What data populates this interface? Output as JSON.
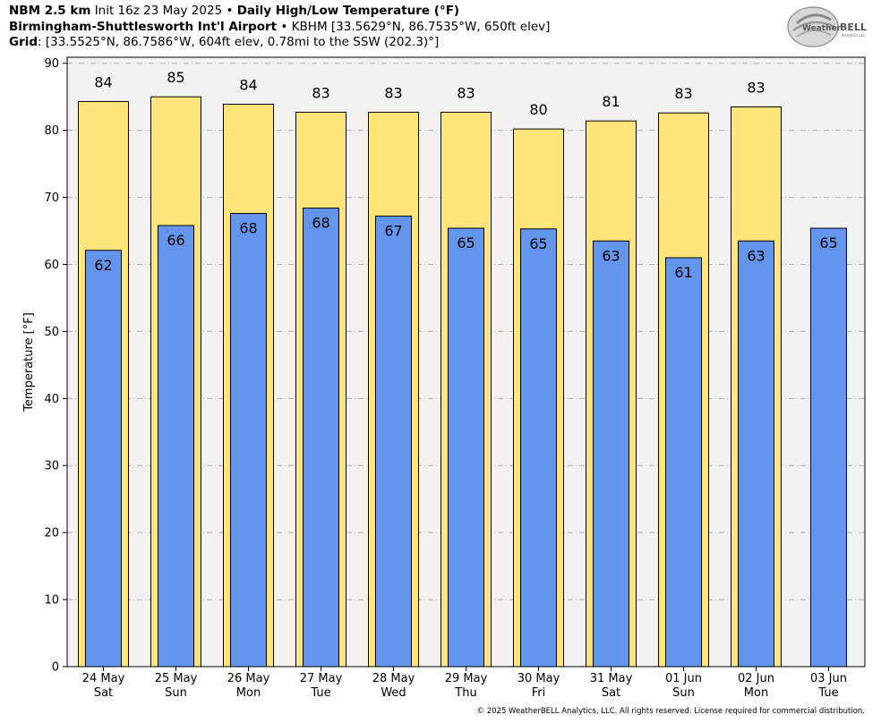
{
  "header": {
    "line1_model": "NBM 2.5 km",
    "line1_init": "Init 16z 23 May 2025",
    "line1_title": "Daily High/Low Temperature (°F)",
    "line2_station": "Birmingham-Shuttlesworth Int'l Airport",
    "line2_info": "KBHM [33.5629°N, 86.7535°W, 650ft elev]",
    "line3_label": "Grid",
    "line3_info": ": [33.5525°N, 86.7586°W, 604ft elev, 0.78mi to the SSW (202.3)°]",
    "separator": "•"
  },
  "logo": {
    "text_a": "Weather",
    "text_b": "BELL",
    "sub": "Analytics LLC"
  },
  "copyright": "© 2025 WeatherBELL Analytics, LLC. All rights reserved. License required for commercial distribution.",
  "colors": {
    "high": "#FFE57A",
    "low": "#6495ED",
    "plot_bg": "#F2F2F2",
    "grid": "#B0B0B0"
  },
  "chart_data": {
    "type": "bar",
    "ylabel": "Temperature [°F]",
    "xlabel": "",
    "ylim": [
      0,
      90
    ],
    "yticks": [
      0,
      10,
      20,
      30,
      40,
      50,
      60,
      70,
      80,
      90
    ],
    "grid": true,
    "categories": [
      {
        "date": "24 May",
        "day": "Sat"
      },
      {
        "date": "25 May",
        "day": "Sun"
      },
      {
        "date": "26 May",
        "day": "Mon"
      },
      {
        "date": "27 May",
        "day": "Tue"
      },
      {
        "date": "28 May",
        "day": "Wed"
      },
      {
        "date": "29 May",
        "day": "Thu"
      },
      {
        "date": "30 May",
        "day": "Fri"
      },
      {
        "date": "31 May",
        "day": "Sat"
      },
      {
        "date": "01 Jun",
        "day": "Sun"
      },
      {
        "date": "02 Jun",
        "day": "Mon"
      },
      {
        "date": "03 Jun",
        "day": "Tue"
      }
    ],
    "series": [
      {
        "key": "high",
        "values": [
          84.3,
          85.0,
          83.9,
          82.7,
          82.7,
          82.7,
          80.2,
          81.4,
          82.6,
          83.5,
          null
        ],
        "labels": [
          "84",
          "85",
          "84",
          "83",
          "83",
          "83",
          "80",
          "81",
          "83",
          "83",
          null
        ]
      },
      {
        "key": "low",
        "values": [
          62.1,
          65.8,
          67.6,
          68.4,
          67.2,
          65.4,
          65.3,
          63.5,
          61.0,
          63.5,
          65.4
        ],
        "labels": [
          "62",
          "66",
          "68",
          "68",
          "67",
          "65",
          "65",
          "63",
          "61",
          "63",
          "65"
        ]
      }
    ]
  }
}
